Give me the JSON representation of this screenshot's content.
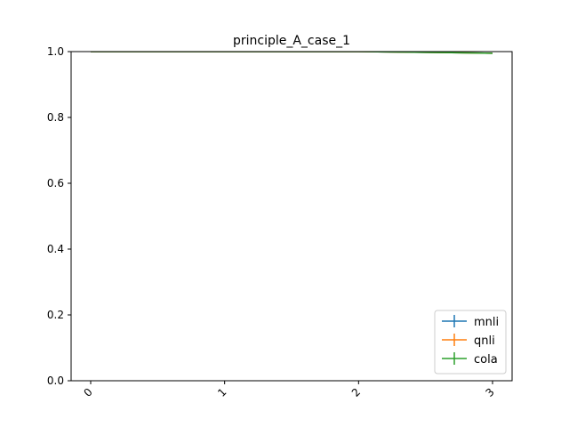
{
  "chart_data": {
    "type": "line",
    "title": "principle_A_case_1",
    "xlabel": "",
    "ylabel": "",
    "categories": [
      "0",
      "1",
      "2",
      "3"
    ],
    "ylim": [
      0,
      1.0
    ],
    "yticks": [
      "0.0",
      "0.2",
      "0.4",
      "0.6",
      "0.8",
      "1.0"
    ],
    "grid": false,
    "legend_position": "lower right",
    "series": [
      {
        "name": "mnli",
        "color": "#1f77b4",
        "values": [
          1.0,
          1.0,
          1.0,
          0.995
        ]
      },
      {
        "name": "qnli",
        "color": "#ff7f0e",
        "values": [
          1.0,
          1.0,
          1.0,
          0.995
        ]
      },
      {
        "name": "cola",
        "color": "#2ca02c",
        "values": [
          1.0,
          1.0,
          1.0,
          0.995
        ]
      }
    ]
  }
}
